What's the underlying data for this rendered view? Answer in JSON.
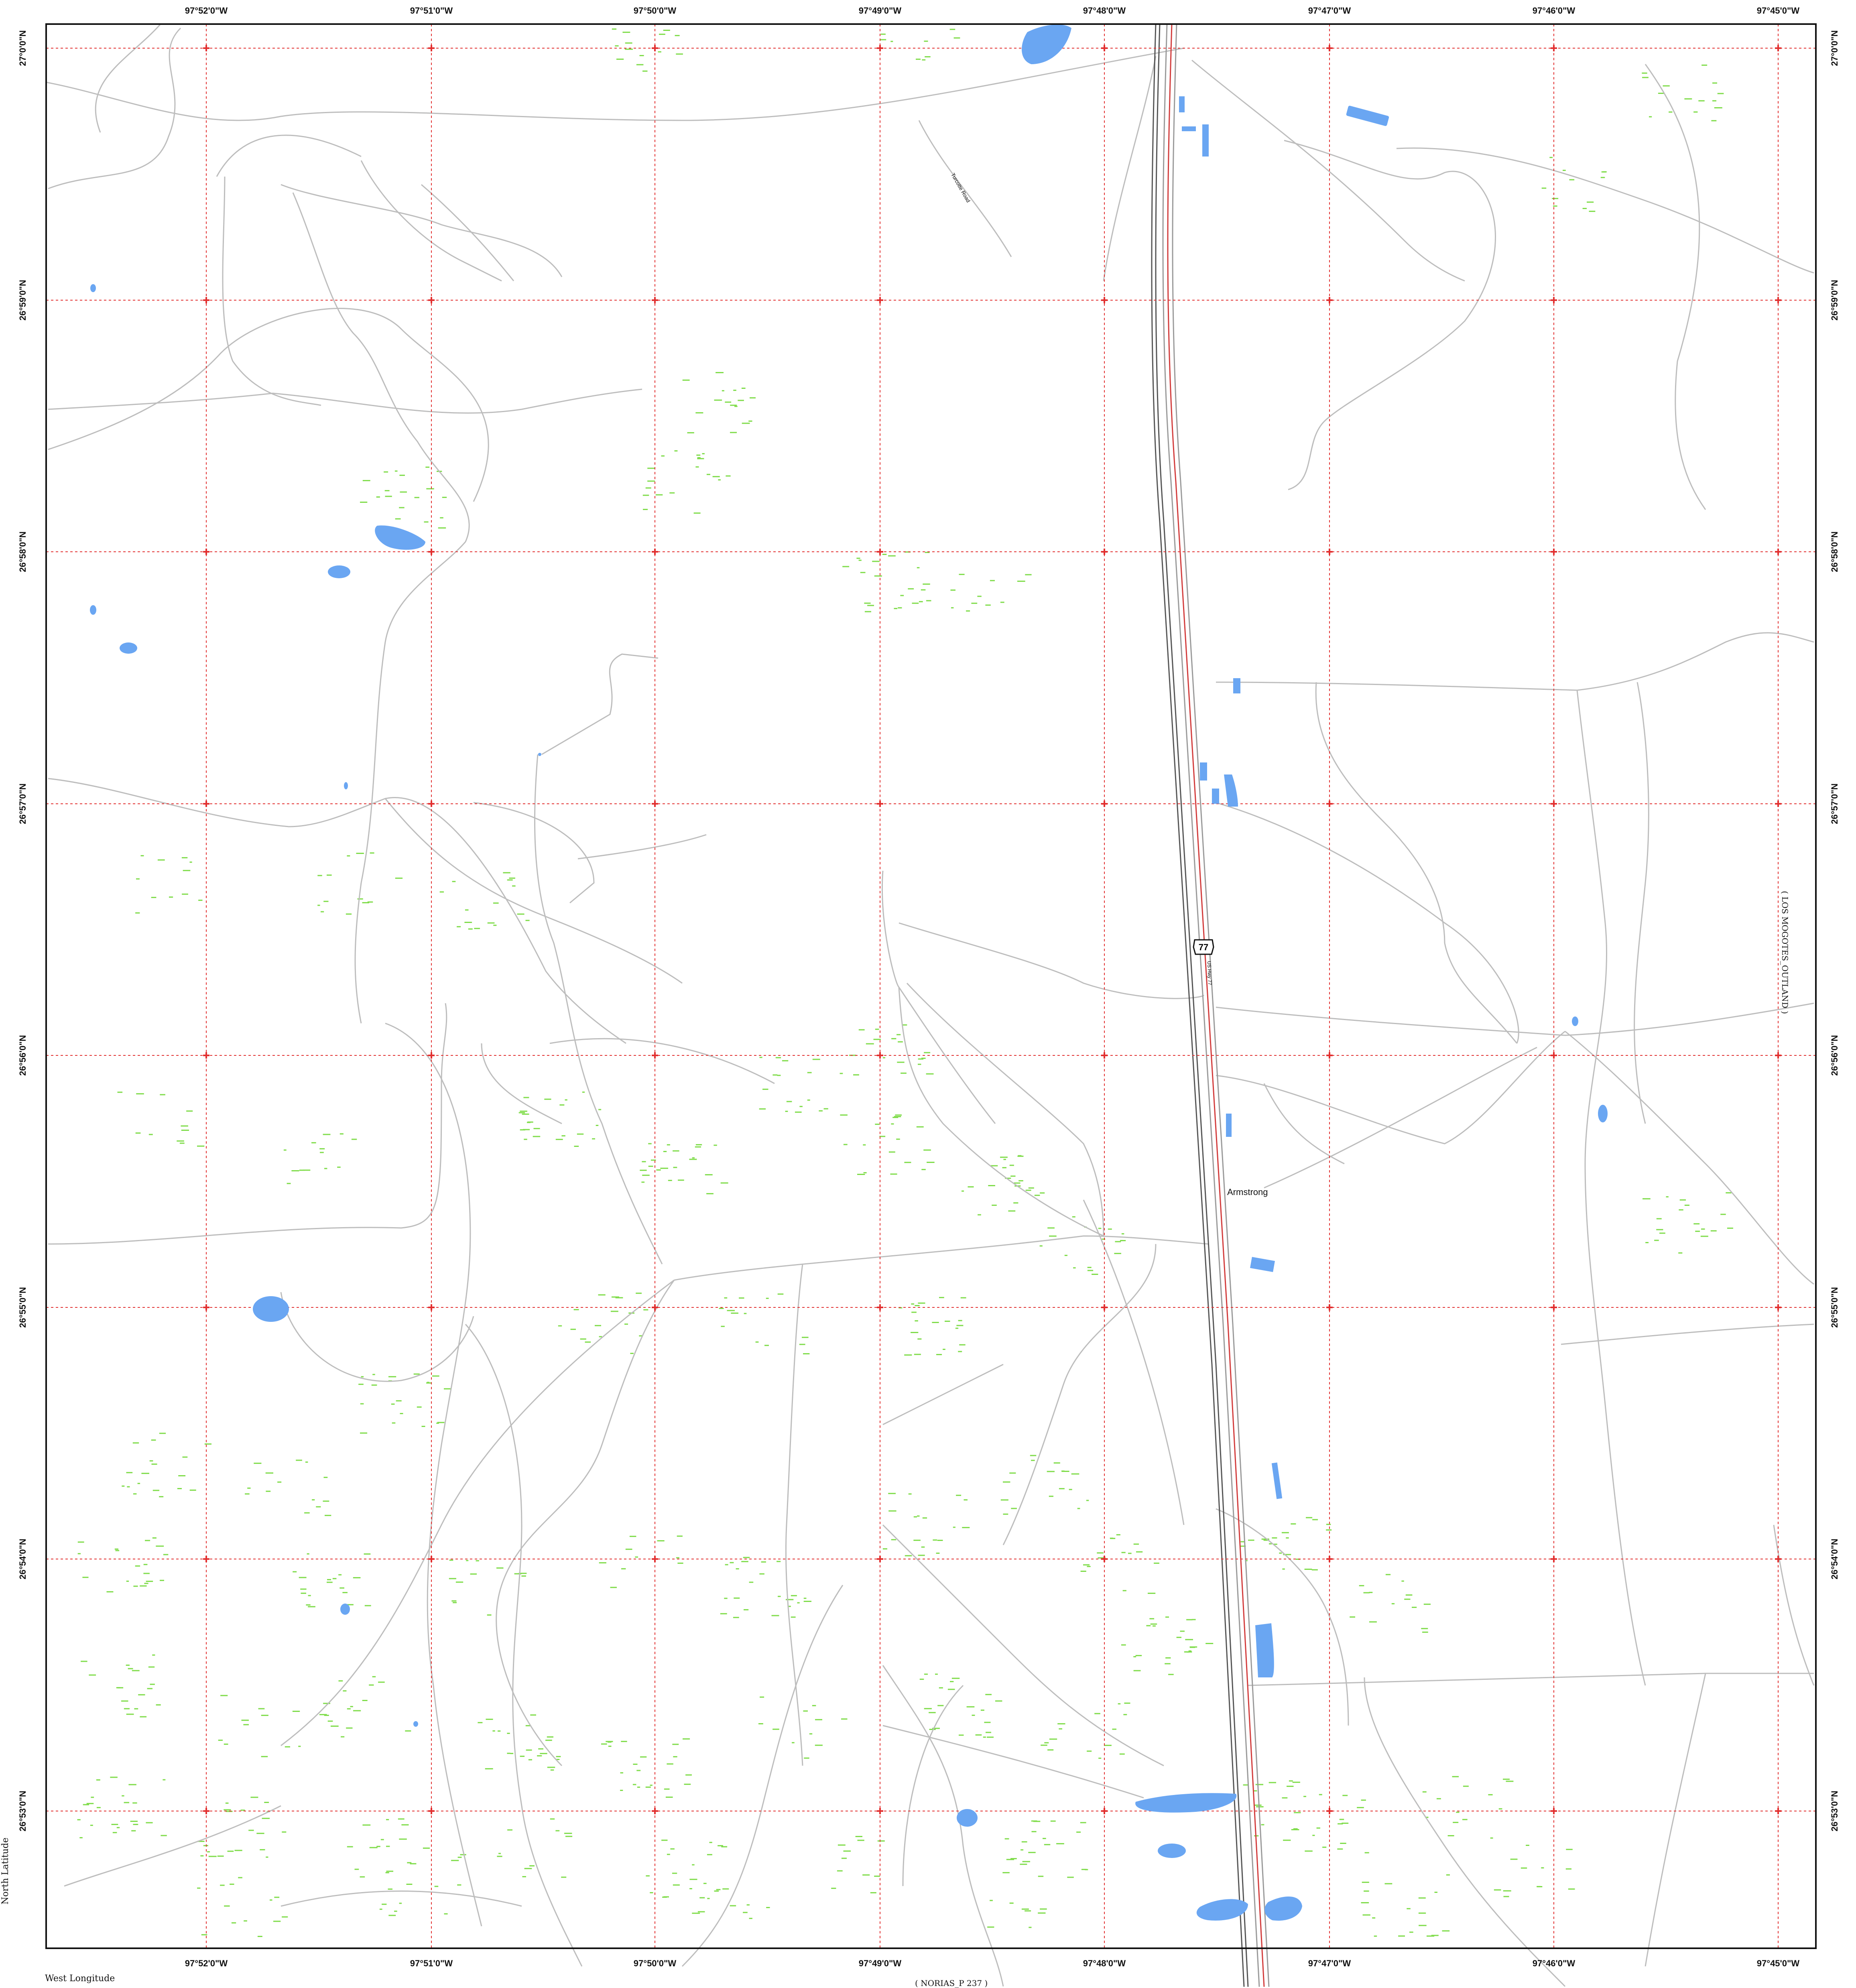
{
  "map": {
    "longitude_labels": [
      "97°52'0\"W",
      "97°51'0\"W",
      "97°50'0\"W",
      "97°49'0\"W",
      "97°48'0\"W",
      "97°47'0\"W",
      "97°46'0\"W",
      "97°45'0\"W"
    ],
    "latitude_labels": [
      "27°0'0\"N",
      "26°59'0\"N",
      "26°58'0\"N",
      "26°57'0\"N",
      "26°56'0\"N",
      "26°55'0\"N",
      "26°54'0\"N",
      "26°53'0\"N"
    ],
    "place_name": "Armstrong",
    "highway_shield": "77",
    "highway_name": "US Hwy 77",
    "road_name": "Turcotte Road",
    "left_margin_note": "North Latitude",
    "bottom_left_note": "West Longitude",
    "bottom_center_note": "( NORIAS_P 237 )",
    "right_margin_note": "( LOS MOGOTES_OUTLAND )",
    "colors": {
      "grid": "#e23030",
      "water": "#6aa6f2",
      "roads": "#bdbdbd",
      "highway": "#d23c3c",
      "railroad": "#555555",
      "vegetation": "#7fdc4a"
    }
  }
}
